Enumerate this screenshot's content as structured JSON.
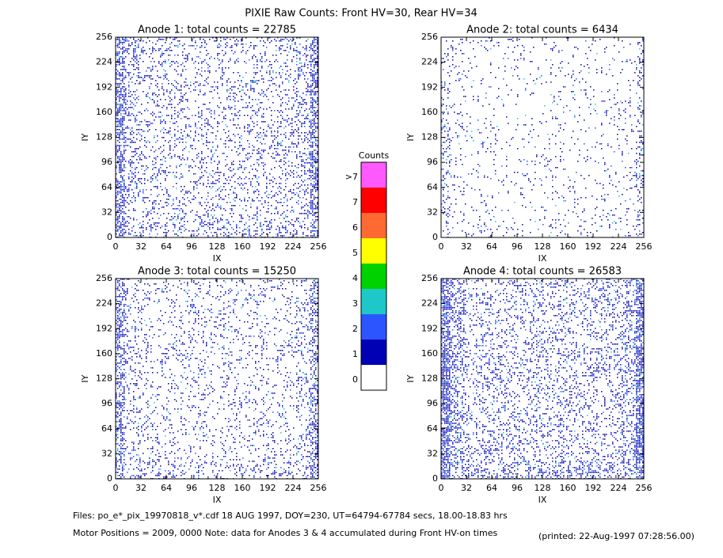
{
  "title": "PIXIE Raw Counts:  Front HV=30, Rear HV=34",
  "panels": [
    {
      "title": "Anode 1: total counts = 22785",
      "xlabel": "IX",
      "ylabel": "IY"
    },
    {
      "title": "Anode 2: total counts = 6434",
      "xlabel": "IX",
      "ylabel": "IY"
    },
    {
      "title": "Anode 3: total counts = 15250",
      "xlabel": "IX",
      "ylabel": "IY"
    },
    {
      "title": "Anode 4: total counts = 26583",
      "xlabel": "IX",
      "ylabel": "IY"
    }
  ],
  "xlim": [
    0,
    256
  ],
  "ylim": [
    0,
    256
  ],
  "xticks": [
    0,
    32,
    64,
    96,
    128,
    160,
    192,
    224,
    256
  ],
  "yticks": [
    0,
    32,
    64,
    96,
    128,
    160,
    192,
    224,
    256
  ],
  "colorbar": {
    "title": "Counts",
    "labels": [
      "0",
      "1",
      "2",
      "3",
      "4",
      "5",
      "6",
      "7",
      ">7"
    ],
    "colors": [
      "#ffffff",
      "#0000b4",
      "#2d55ff",
      "#1ec8c8",
      "#00d200",
      "#ffff00",
      "#ff6a32",
      "#ff0000",
      "#ff5aff"
    ]
  },
  "footer": {
    "files": "Files: po_e*_pix_19970818_v*.cdf    18 AUG 1997, DOY=230, UT=64794-67784 secs, 18.00-18.83 hrs",
    "motor": "Motor Positions = 2009, 0000    Note: data for Anodes 3 & 4 accumulated during Front HV-on times",
    "printed": "(printed: 22-Aug-1997 07:28:56.00)"
  }
}
